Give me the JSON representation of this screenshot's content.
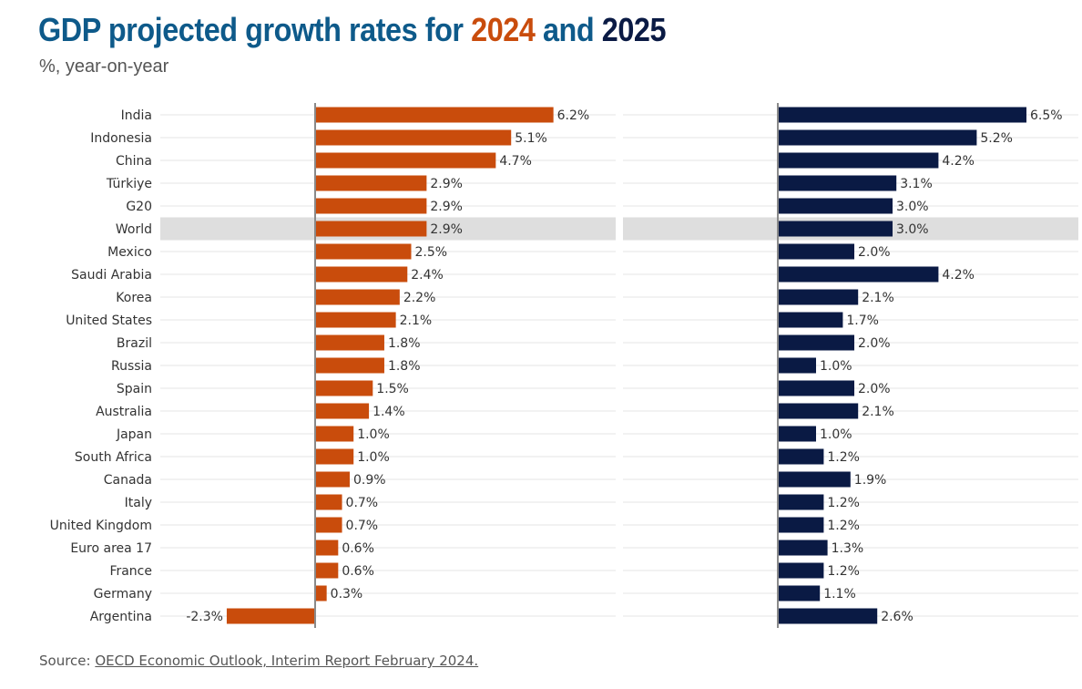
{
  "header": {
    "title_prefix": "GDP projected growth rates for ",
    "year_a": "2024",
    "title_mid": " and ",
    "year_b": "2025",
    "subtitle": "%, year-on-year"
  },
  "footer": {
    "source_prefix": "Source: ",
    "source_link": "OECD Economic Outlook, Interim Report February 2024."
  },
  "colors": {
    "series_2024": "#c94c0c",
    "series_2025": "#0a1a44",
    "highlight": "#dedede",
    "gridline": "#e4e4e4",
    "axis": "#8a8a8a"
  },
  "chart_data": {
    "type": "bar",
    "orientation": "horizontal",
    "title": "GDP projected growth rates for 2024 and 2025",
    "subtitle": "%, year-on-year",
    "highlight_category": "World",
    "value_suffix": "%",
    "categories": [
      "India",
      "Indonesia",
      "China",
      "Türkiye",
      "G20",
      "World",
      "Mexico",
      "Saudi Arabia",
      "Korea",
      "United States",
      "Brazil",
      "Russia",
      "Spain",
      "Australia",
      "Japan",
      "South Africa",
      "Canada",
      "Italy",
      "United Kingdom",
      "Euro area 17",
      "France",
      "Germany",
      "Argentina"
    ],
    "series": [
      {
        "name": "2024",
        "values": [
          6.2,
          5.1,
          4.7,
          2.9,
          2.9,
          2.9,
          2.5,
          2.4,
          2.2,
          2.1,
          1.8,
          1.8,
          1.5,
          1.4,
          1.0,
          1.0,
          0.9,
          0.7,
          0.7,
          0.6,
          0.6,
          0.3,
          -2.3
        ]
      },
      {
        "name": "2025",
        "values": [
          6.5,
          5.2,
          4.2,
          3.1,
          3.0,
          3.0,
          2.0,
          4.2,
          2.1,
          1.7,
          2.0,
          1.0,
          2.0,
          2.1,
          1.0,
          1.2,
          1.9,
          1.2,
          1.2,
          1.3,
          1.2,
          1.1,
          2.6
        ]
      }
    ]
  }
}
